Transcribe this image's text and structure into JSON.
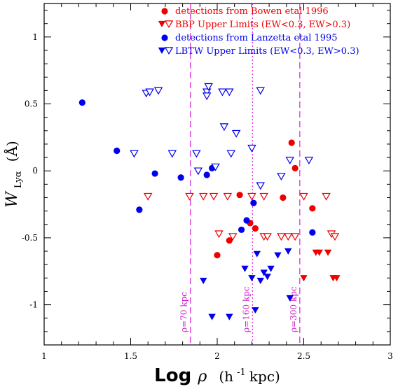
{
  "chart_data": {
    "type": "scatter",
    "title": "",
    "xlabel_main": "Log",
    "xlabel_symbol": "ρ",
    "xlabel_units": "(h",
    "xlabel_exp": "-1",
    "xlabel_units_end": " kpc)",
    "ylabel_main": "W",
    "ylabel_sub": "Lyα",
    "ylabel_units": "(Å)",
    "xlim": [
      1,
      3
    ],
    "ylim": [
      -1.3,
      1.25
    ],
    "xticks": [
      1,
      1.5,
      2,
      2.5,
      3
    ],
    "xtick_labels": [
      "1",
      "1.5",
      "2",
      "2.5",
      "3"
    ],
    "yticks": [
      1,
      0.5,
      0,
      -0.5,
      -1
    ],
    "ytick_labels": [
      "1",
      "0.5",
      "0",
      "-0.5",
      "-1"
    ],
    "colors": {
      "red": "#ee0000",
      "blue": "#0000ee",
      "magenta": "#dd33dd"
    },
    "legend": [
      {
        "text": "detections from Bowen etal 1996",
        "color": "#ee0000",
        "marker": "filled-circle"
      },
      {
        "text": "BBP Upper Limits (EW<0.3, EW>0.3)",
        "color": "#ee0000",
        "marker": "triangles"
      },
      {
        "text": "detections from Lanzetta etal 1995",
        "color": "#0000ee",
        "marker": "filled-circle"
      },
      {
        "text": "LBTW Upper Limits (EW<0.3, EW>0.3)",
        "color": "#0000ee",
        "marker": "triangles"
      }
    ],
    "reference_lines": [
      {
        "x": 1.845,
        "label": "ρ=70 kpc",
        "style": "dashed"
      },
      {
        "x": 2.204,
        "label": "ρ=160 kpc",
        "style": "dotted"
      },
      {
        "x": 2.477,
        "label": "ρ=300 kpc",
        "style": "dashed"
      }
    ],
    "series": [
      {
        "name": "detections from Bowen etal 1996",
        "marker": "filled-circle",
        "color": "#ee0000",
        "points": [
          [
            2.43,
            0.21
          ],
          [
            2.45,
            0.02
          ],
          [
            2.38,
            -0.2
          ],
          [
            2.13,
            -0.18
          ],
          [
            2.19,
            -0.39
          ],
          [
            2.22,
            -0.43
          ],
          [
            2.07,
            -0.52
          ],
          [
            2.0,
            -0.63
          ],
          [
            2.55,
            -0.28
          ]
        ]
      },
      {
        "name": "BBP Upper Limits (EW<0.3)",
        "marker": "filled-triangle",
        "color": "#ee0000",
        "points": [
          [
            2.57,
            -0.61
          ],
          [
            2.59,
            -0.61
          ],
          [
            2.64,
            -0.61
          ],
          [
            2.5,
            -0.8
          ],
          [
            2.67,
            -0.8
          ],
          [
            2.69,
            -0.8
          ]
        ]
      },
      {
        "name": "BBP Upper Limits (EW>0.3)",
        "marker": "open-triangle",
        "color": "#ee0000",
        "points": [
          [
            1.6,
            -0.19
          ],
          [
            1.84,
            -0.19
          ],
          [
            1.92,
            -0.19
          ],
          [
            1.98,
            -0.19
          ],
          [
            2.06,
            -0.19
          ],
          [
            2.2,
            -0.19
          ],
          [
            2.27,
            -0.19
          ],
          [
            2.5,
            -0.19
          ],
          [
            2.63,
            -0.19
          ],
          [
            2.01,
            -0.47
          ],
          [
            2.09,
            -0.49
          ],
          [
            2.27,
            -0.49
          ],
          [
            2.29,
            -0.49
          ],
          [
            2.37,
            -0.49
          ],
          [
            2.41,
            -0.49
          ],
          [
            2.45,
            -0.49
          ],
          [
            2.66,
            -0.47
          ],
          [
            2.68,
            -0.49
          ]
        ]
      },
      {
        "name": "detections from Lanzetta etal 1995",
        "marker": "filled-circle",
        "color": "#0000ee",
        "points": [
          [
            1.22,
            0.51
          ],
          [
            1.42,
            0.15
          ],
          [
            1.55,
            -0.29
          ],
          [
            1.64,
            -0.02
          ],
          [
            1.79,
            -0.05
          ],
          [
            1.94,
            -0.03
          ],
          [
            1.97,
            0.02
          ],
          [
            2.14,
            -0.44
          ],
          [
            2.17,
            -0.37
          ],
          [
            2.21,
            -0.24
          ],
          [
            2.55,
            -0.46
          ]
        ]
      },
      {
        "name": "LBTW Upper Limits (EW<0.3)",
        "marker": "filled-triangle",
        "color": "#0000ee",
        "points": [
          [
            1.92,
            -0.82
          ],
          [
            1.97,
            -1.09
          ],
          [
            2.07,
            -1.09
          ],
          [
            2.16,
            -0.73
          ],
          [
            2.2,
            -0.8
          ],
          [
            2.22,
            -1.04
          ],
          [
            2.23,
            -0.62
          ],
          [
            2.25,
            -0.82
          ],
          [
            2.27,
            -0.76
          ],
          [
            2.29,
            -0.79
          ],
          [
            2.31,
            -0.73
          ],
          [
            2.35,
            -0.63
          ],
          [
            2.41,
            -0.6
          ],
          [
            2.42,
            -0.95
          ]
        ]
      },
      {
        "name": "LBTW Upper Limits (EW>0.3)",
        "marker": "open-triangle",
        "color": "#0000ee",
        "points": [
          [
            1.59,
            0.58
          ],
          [
            1.61,
            0.59
          ],
          [
            1.66,
            0.6
          ],
          [
            1.94,
            0.59
          ],
          [
            1.94,
            0.56
          ],
          [
            1.95,
            0.63
          ],
          [
            2.03,
            0.59
          ],
          [
            2.07,
            0.59
          ],
          [
            2.25,
            0.6
          ],
          [
            2.04,
            0.33
          ],
          [
            2.11,
            0.28
          ],
          [
            2.2,
            0.17
          ],
          [
            1.52,
            0.13
          ],
          [
            1.74,
            0.13
          ],
          [
            1.88,
            0.13
          ],
          [
            2.08,
            0.13
          ],
          [
            2.42,
            0.08
          ],
          [
            2.53,
            0.08
          ],
          [
            1.89,
            0.0
          ],
          [
            1.99,
            0.03
          ],
          [
            2.37,
            -0.04
          ],
          [
            2.25,
            -0.11
          ]
        ]
      }
    ]
  }
}
